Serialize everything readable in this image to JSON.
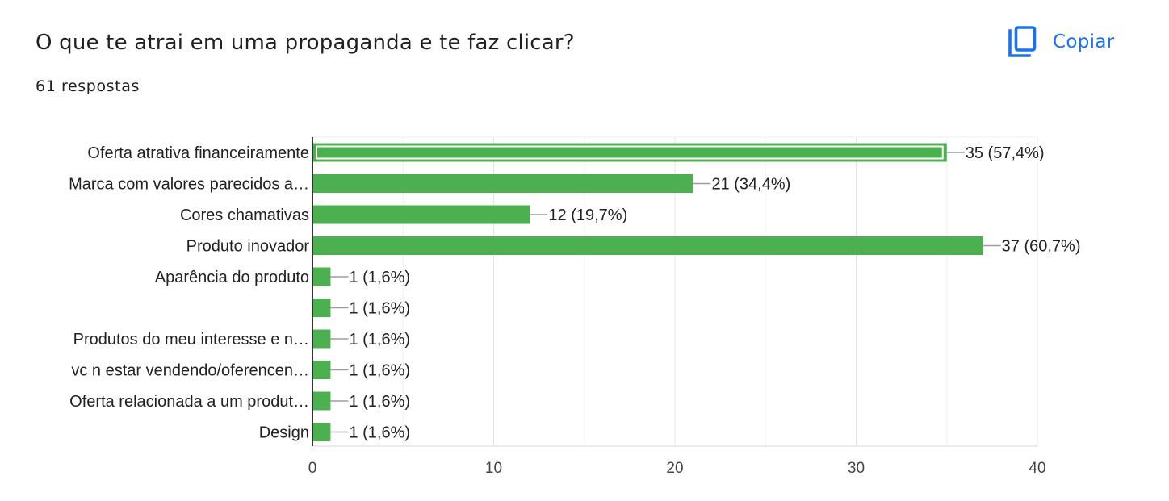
{
  "header": {
    "question": "O que te atrai em uma propaganda e te faz clicar?",
    "responses": "61 respostas",
    "copy_label": "Copiar",
    "copy_icon": "copy-icon"
  },
  "colors": {
    "bar": "#4caf50",
    "accent": "#1a73e8",
    "grid": "#e8e8e8",
    "text": "#202124"
  },
  "chart_data": {
    "type": "bar",
    "orientation": "horizontal",
    "categories": [
      "Oferta atrativa financeiramente",
      "Marca com valores parecidos a…",
      "Cores chamativas",
      "Produto inovador",
      "Aparência do produto",
      "",
      "Produtos do meu interesse e n…",
      "vc n estar vendendo/oferencen…",
      "Oferta relacionada a um produt…",
      "Design"
    ],
    "values": [
      35,
      21,
      12,
      37,
      1,
      1,
      1,
      1,
      1,
      1
    ],
    "data_labels": [
      "35 (57,4%)",
      "21 (34,4%)",
      "12 (19,7%)",
      "37 (60,7%)",
      "1 (1,6%)",
      "1 (1,6%)",
      "1 (1,6%)",
      "1 (1,6%)",
      "1 (1,6%)",
      "1 (1,6%)"
    ],
    "highlighted_index": 0,
    "xlim": [
      0,
      40
    ],
    "xticks": [
      0,
      10,
      20,
      30,
      40
    ],
    "xtick_labels": [
      "0",
      "10",
      "20",
      "30",
      "40"
    ],
    "grid": true,
    "legend": "none"
  }
}
